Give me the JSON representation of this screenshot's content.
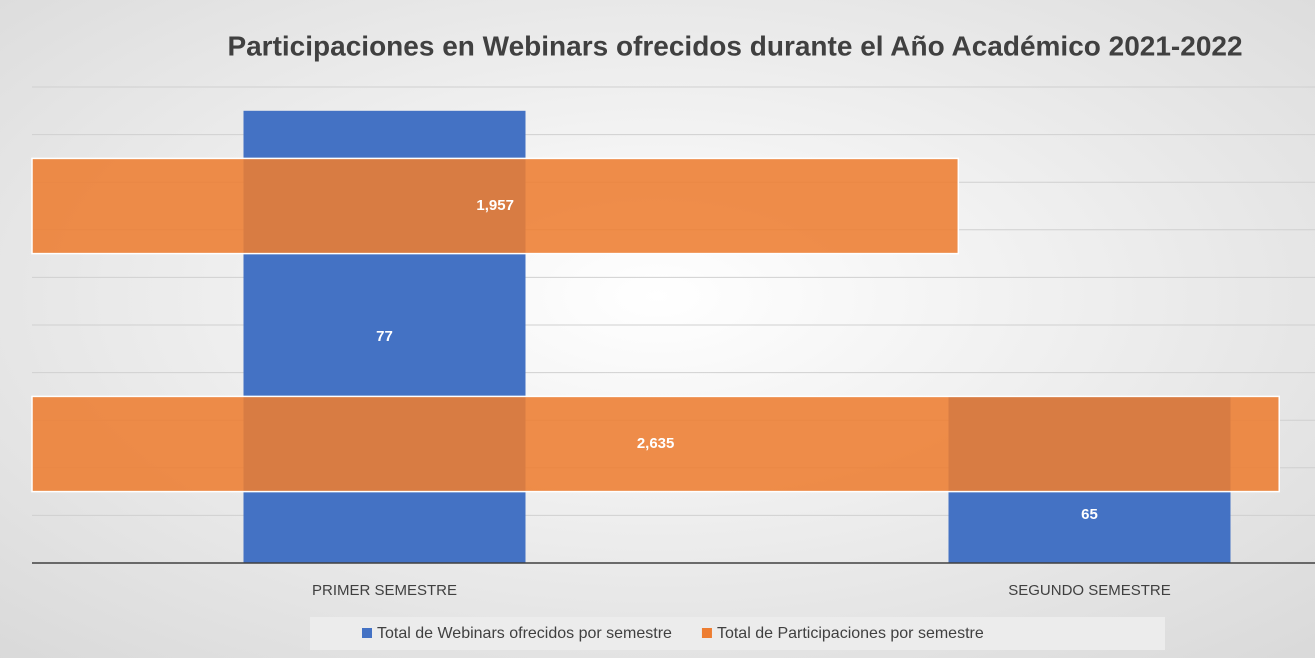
{
  "chart_data": {
    "type": "combo",
    "title": "Participaciones en Webinars ofrecidos durante el Año Académico 2021-2022",
    "categories": [
      "PRIMER SEMESTRE",
      "SEGUNDO SEMESTRE"
    ],
    "series": [
      {
        "name": "Total de Webinars ofrecidos por semestre",
        "color": "#4472c4",
        "orientation": "vertical",
        "values": [
          77,
          65
        ]
      },
      {
        "name": "Total de Participaciones por semestre",
        "color": "#ed7d31",
        "orientation": "horizontal",
        "axis": "x2",
        "values": [
          2635,
          1957
        ],
        "value_labels": [
          "2,635",
          "1,957"
        ]
      }
    ],
    "ylim": [
      58,
      78
    ],
    "yticks": [
      58,
      60,
      62,
      64,
      66,
      68,
      70,
      72,
      74,
      76,
      78
    ],
    "x2lim": [
      0,
      2700
    ],
    "grid": true,
    "legend": "bottom"
  }
}
